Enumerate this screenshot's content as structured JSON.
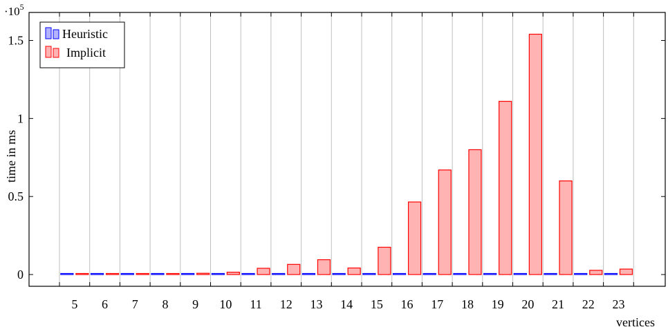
{
  "chart_data": {
    "type": "bar",
    "categories": [
      "5",
      "6",
      "7",
      "8",
      "9",
      "10",
      "11",
      "12",
      "13",
      "14",
      "15",
      "16",
      "17",
      "18",
      "19",
      "20",
      "21",
      "22",
      "23"
    ],
    "series": [
      {
        "name": "Heuristic",
        "values": [
          30,
          30,
          30,
          30,
          30,
          30,
          30,
          30,
          30,
          30,
          30,
          30,
          30,
          30,
          30,
          30,
          30,
          30,
          30
        ],
        "fill": "#b3b3ff",
        "stroke": "#0000ff"
      },
      {
        "name": "Implicit",
        "values": [
          150,
          150,
          200,
          250,
          800,
          1500,
          4000,
          6500,
          9500,
          4200,
          17500,
          46500,
          67000,
          80000,
          111000,
          154000,
          60000,
          2700,
          3500
        ],
        "fill": "#ffb3b3",
        "stroke": "#ff0000"
      }
    ],
    "xlabel": "vertices",
    "ylabel": "time in ms",
    "ylim": [
      -7500,
      162000
    ],
    "yticks": [
      0,
      50000,
      100000,
      150000
    ],
    "ytick_labels": [
      "0",
      "0.5",
      "1",
      "1.5"
    ],
    "y_multiplier": {
      "base": "·10",
      "exponent": "5"
    },
    "grid": "vertical",
    "legend": "top-left"
  }
}
